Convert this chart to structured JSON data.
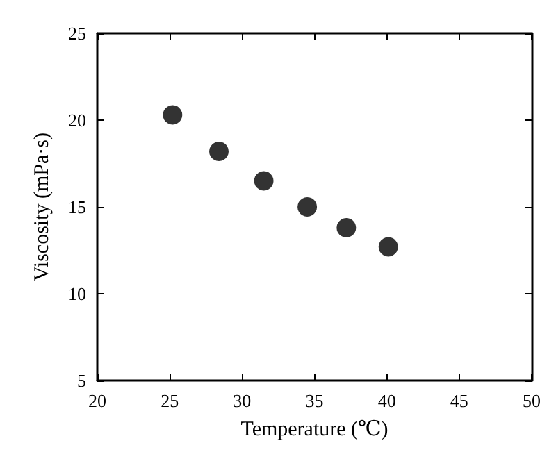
{
  "chart_data": {
    "type": "scatter",
    "xlabel": "Temperature (℃)",
    "ylabel": "Viscosity (mPa·s)",
    "x": [
      25.2,
      28.4,
      31.5,
      34.5,
      37.2,
      40.1
    ],
    "values": [
      20.3,
      18.2,
      16.5,
      15.0,
      13.8,
      12.7
    ],
    "color": "#000000",
    "marker": "circle",
    "xlim": [
      20,
      50
    ],
    "xticks": [
      20,
      25,
      30,
      35,
      40,
      45,
      50
    ],
    "ylim": [
      5,
      25
    ],
    "yticks": [
      5,
      10,
      15,
      20,
      25
    ],
    "grid": false
  }
}
